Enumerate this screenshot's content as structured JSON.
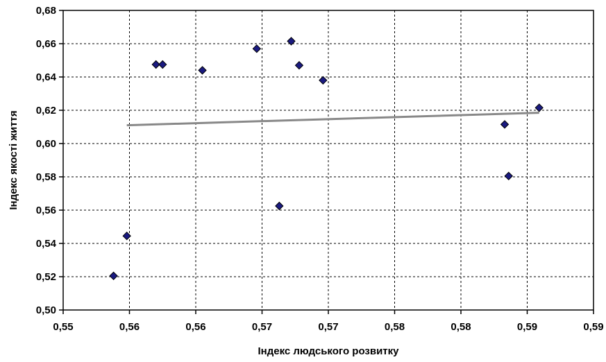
{
  "chart_data": {
    "type": "scatter",
    "xlabel": "Індекс людського розвитку",
    "ylabel": "Індекс якості життя",
    "xlim": [
      0.55,
      0.59
    ],
    "ylim": [
      0.5,
      0.68
    ],
    "x_ticks": [
      0.55,
      0.555,
      0.56,
      0.565,
      0.57,
      0.575,
      0.58,
      0.585,
      0.59
    ],
    "x_tick_labels": [
      "0,55",
      "0,56",
      "0,56",
      "0,57",
      "0,57",
      "0,58",
      "0,58",
      "0,59",
      "0,59"
    ],
    "y_ticks": [
      0.5,
      0.52,
      0.54,
      0.56,
      0.58,
      0.6,
      0.62,
      0.64,
      0.66,
      0.68
    ],
    "y_tick_labels": [
      "0,50",
      "0,52",
      "0,54",
      "0,56",
      "0,58",
      "0,60",
      "0,62",
      "0,64",
      "0,66",
      "0,68"
    ],
    "grid": true,
    "marker_color": "#1a1a80",
    "trendline_color": "#888888",
    "series": [
      {
        "points": [
          {
            "x": 0.5548,
            "y": 0.5445
          },
          {
            "x": 0.5538,
            "y": 0.5205
          },
          {
            "x": 0.557,
            "y": 0.6475
          },
          {
            "x": 0.5575,
            "y": 0.6475
          },
          {
            "x": 0.5605,
            "y": 0.644
          },
          {
            "x": 0.5646,
            "y": 0.657
          },
          {
            "x": 0.5663,
            "y": 0.5625
          },
          {
            "x": 0.5672,
            "y": 0.6615
          },
          {
            "x": 0.5678,
            "y": 0.647
          },
          {
            "x": 0.5696,
            "y": 0.638
          },
          {
            "x": 0.5833,
            "y": 0.6115
          },
          {
            "x": 0.5836,
            "y": 0.5805
          },
          {
            "x": 0.5859,
            "y": 0.6215
          }
        ]
      }
    ],
    "trendline": {
      "x": [
        0.5548,
        0.5859
      ],
      "y": [
        0.611,
        0.6185
      ]
    }
  }
}
